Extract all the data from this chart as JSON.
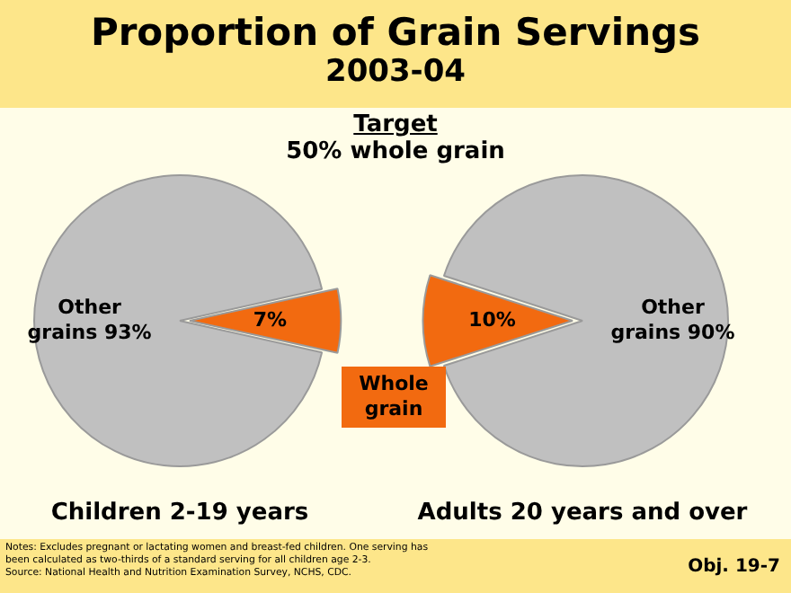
{
  "chart_data": [
    {
      "type": "pie",
      "title": "Proportion of Grain Servings",
      "subtitle": "2003-04",
      "categories": [
        "Whole grain",
        "Other grains"
      ],
      "values": [
        7,
        93
      ],
      "colors": [
        "#f26a10",
        "#c0c0c0"
      ],
      "value_labels": [
        "7%",
        "93%"
      ],
      "xlabel": "Children 2-19 years",
      "annotations": [
        "Target",
        "50% whole grain",
        "Notes: Excludes pregnant or lactating women and breast-fed children. One serving has been calculated as two-thirds of a standard serving for all children age 2-3.",
        "Source: National Health and Nutrition Examination Survey, NCHS, CDC.",
        "Obj. 19-7"
      ]
    },
    {
      "type": "pie",
      "categories": [
        null,
        "Other grains"
      ],
      "values": [
        10,
        90
      ],
      "colors": [
        "#f26a10",
        "#c0c0c0"
      ],
      "value_labels": [
        "10%",
        "90%"
      ],
      "xlabel": "Adults 20 years and over"
    }
  ]
}
